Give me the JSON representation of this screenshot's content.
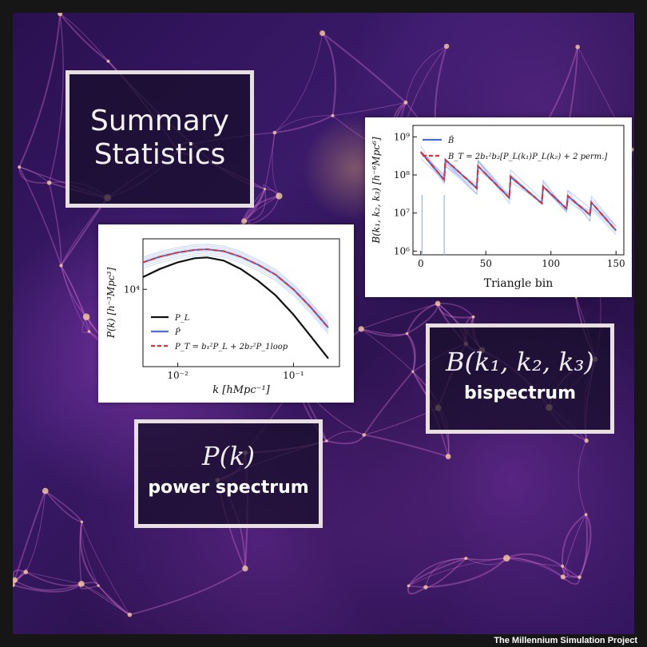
{
  "panels": {
    "summary": {
      "line1": "Summary",
      "line2": "Statistics"
    },
    "power": {
      "math": "P(k)",
      "label": "power spectrum"
    },
    "bispectrum": {
      "math": "B(k₁, k₂, k₃)",
      "label": "bispectrum"
    }
  },
  "credit": "The Millennium Simulation Project",
  "colors": {
    "frame": "#161616",
    "panel_border": "#e8e0e0",
    "line_black": "#111111",
    "line_blue": "#4a6fd8",
    "line_red": "#d9323a",
    "band_blue": "#9ab4ee"
  },
  "chart_data": [
    {
      "type": "line",
      "xscale": "log",
      "yscale": "log",
      "xlabel": "k [hMpc⁻¹]",
      "ylabel": "P(k) [h⁻³Mpc³]",
      "xlim": [
        0.005,
        0.25
      ],
      "ylim": [
        1200,
        40000
      ],
      "xticks": [
        {
          "value": 0.01,
          "label": "10⁻²"
        },
        {
          "value": 0.1,
          "label": "10⁻¹"
        }
      ],
      "yticks": [
        {
          "value": 10000,
          "label": "10⁴"
        }
      ],
      "legend_position": "bottom-left",
      "legend": [
        {
          "label": "P_L",
          "style": "solid",
          "color": "#111111"
        },
        {
          "label": "P̂",
          "style": "solid",
          "color": "#4a6fd8"
        },
        {
          "label": "P_T = b₁²P_L + 2b₂²P_1loop",
          "style": "dashed",
          "color": "#d9323a"
        }
      ],
      "x": [
        0.005,
        0.007,
        0.01,
        0.014,
        0.018,
        0.025,
        0.035,
        0.05,
        0.07,
        0.1,
        0.14,
        0.2
      ],
      "series": [
        {
          "name": "P_L",
          "values": [
            14000,
            17500,
            21000,
            23500,
            24000,
            22000,
            17500,
            12500,
            8500,
            5000,
            2800,
            1500
          ]
        },
        {
          "name": "P̂",
          "values": [
            21000,
            24500,
            27500,
            29500,
            30000,
            28500,
            24500,
            19500,
            15000,
            10000,
            6200,
            3500
          ]
        },
        {
          "name": "P_T",
          "values": [
            21000,
            24500,
            27500,
            29500,
            30000,
            28500,
            24500,
            19500,
            15000,
            10000,
            6200,
            3500
          ]
        }
      ]
    },
    {
      "type": "line",
      "yscale": "log",
      "xlabel": "Triangle bin",
      "ylabel": "B(k₁, k₂, k₃) [h⁻⁶Mpc⁶]",
      "xlim": [
        -6,
        156
      ],
      "ylim": [
        800000,
        2000000000
      ],
      "xticks": [
        {
          "value": 0,
          "label": "0"
        },
        {
          "value": 50,
          "label": "50"
        },
        {
          "value": 100,
          "label": "100"
        },
        {
          "value": 150,
          "label": "150"
        }
      ],
      "yticks": [
        {
          "value": 1000000,
          "label": "10⁶"
        },
        {
          "value": 10000000,
          "label": "10⁷"
        },
        {
          "value": 100000000,
          "label": "10⁸"
        },
        {
          "value": 1000000000,
          "label": "10⁹"
        }
      ],
      "legend_position": "top-left",
      "legend": [
        {
          "label": "B̂",
          "style": "solid",
          "color": "#4a6fd8"
        },
        {
          "label": "B_T = 2b₁²b₂[P_L(k₁)P_L(k₂) + 2 perm.]",
          "style": "dashed",
          "color": "#d9323a"
        }
      ],
      "x": [
        0,
        18,
        19,
        43,
        44,
        68,
        69,
        93,
        94,
        112,
        113,
        130,
        131,
        150
      ],
      "series": [
        {
          "name": "B_T",
          "values": [
            400000000,
            75000000,
            250000000,
            45000000,
            170000000,
            25000000,
            90000000,
            18000000,
            50000000,
            13000000,
            28000000,
            9000000,
            19000000,
            3500000
          ]
        }
      ]
    }
  ]
}
